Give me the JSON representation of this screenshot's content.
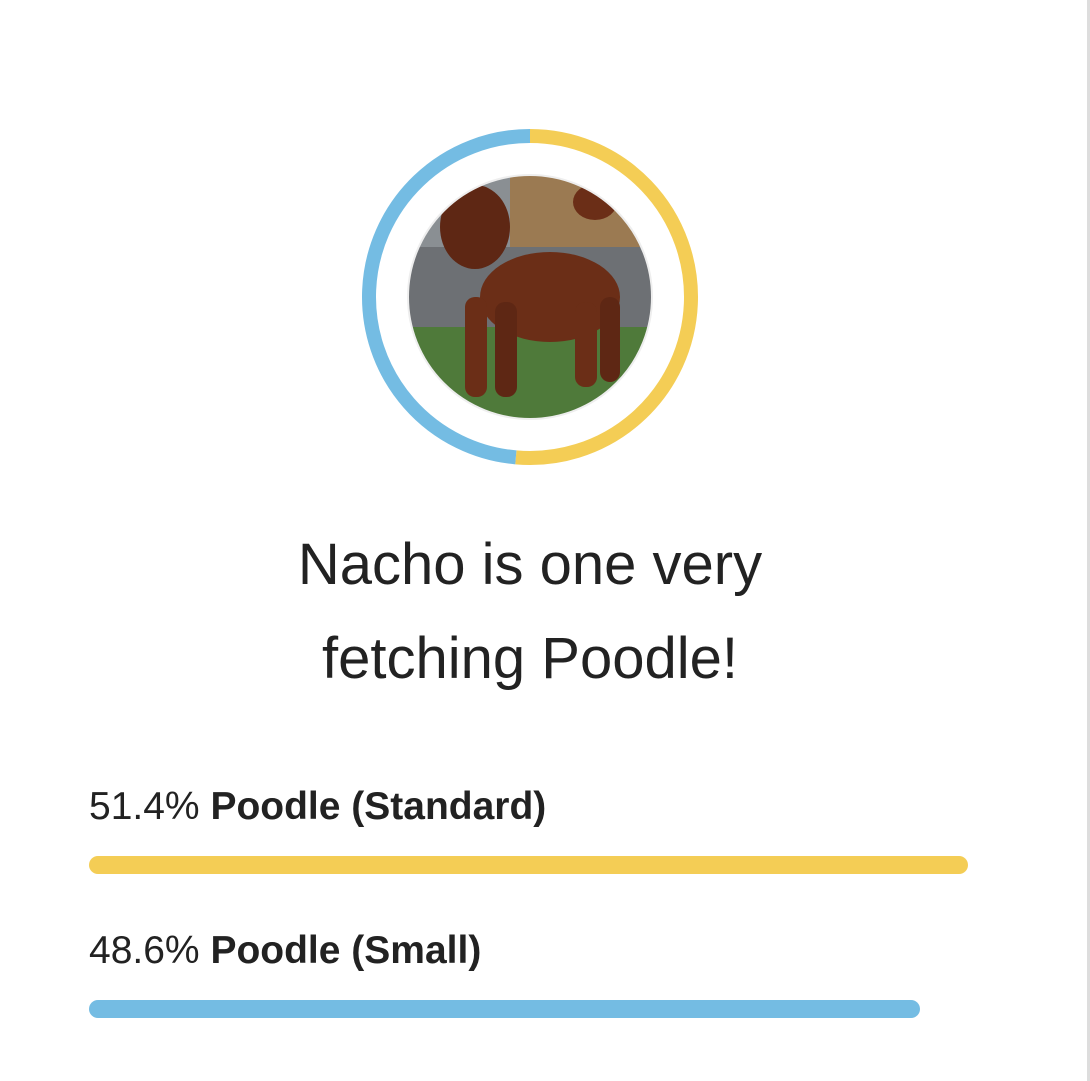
{
  "dog_name": "Nacho",
  "headline": {
    "line1": "Nacho is one very",
    "line2": "fetching Poodle!"
  },
  "photo": {
    "alt": "dog-photo"
  },
  "breeds": [
    {
      "percent": 51.4,
      "percent_label": "51.4%",
      "name": "Poodle (Standard)",
      "color": "#f4cd55"
    },
    {
      "percent": 48.6,
      "percent_label": "48.6%",
      "name": "Poodle (Small)",
      "color": "#74bce3"
    }
  ]
}
